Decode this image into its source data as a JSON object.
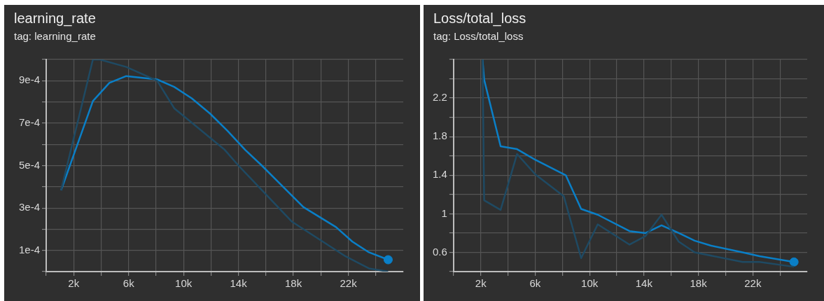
{
  "chart_data": [
    {
      "type": "line",
      "title": "learning_rate",
      "subtitle": "tag: learning_rate",
      "grid": true,
      "legend": false,
      "xlim": [
        0,
        26000
      ],
      "xticks": [
        {
          "value": 0,
          "label": null
        },
        {
          "value": 2000,
          "label": "2k"
        },
        {
          "value": 4000,
          "label": null
        },
        {
          "value": 6000,
          "label": "6k"
        },
        {
          "value": 8000,
          "label": null
        },
        {
          "value": 10000,
          "label": "10k"
        },
        {
          "value": 12000,
          "label": null
        },
        {
          "value": 14000,
          "label": "14k"
        },
        {
          "value": 16000,
          "label": null
        },
        {
          "value": 18000,
          "label": "18k"
        },
        {
          "value": 20000,
          "label": null
        },
        {
          "value": 22000,
          "label": "22k"
        },
        {
          "value": 24000,
          "label": null
        }
      ],
      "ylim": [
        0,
        0.001
      ],
      "yticks": [
        {
          "value": 0,
          "label": null
        },
        {
          "value": 0.0001,
          "label": "1e-4"
        },
        {
          "value": 0.0002,
          "label": null
        },
        {
          "value": 0.0003,
          "label": "3e-4"
        },
        {
          "value": 0.0004,
          "label": null
        },
        {
          "value": 0.0005,
          "label": "5e-4"
        },
        {
          "value": 0.0006,
          "label": null
        },
        {
          "value": 0.0007,
          "label": "7e-4"
        },
        {
          "value": 0.0008,
          "label": null
        },
        {
          "value": 0.0009,
          "label": "9e-4"
        },
        {
          "value": 0.001,
          "label": null
        }
      ],
      "series": [
        {
          "color": "#1f4a63",
          "x": [
            1080,
            3400,
            3900,
            5830,
            8080,
            9320,
            13000,
            14000,
            17900,
            21800,
            23500,
            24900
          ],
          "values": [
            0.000383,
            0.001,
            0.001,
            0.000965,
            0.0009,
            0.00077,
            0.000574,
            0.0005,
            0.000235,
            7.2e-05,
            1.5e-05,
            0
          ]
        },
        {
          "color": "#0a7fc7",
          "x": [
            1080,
            3400,
            4600,
            5830,
            8080,
            9320,
            10600,
            11930,
            13200,
            14490,
            15700,
            18730,
            21100,
            22300,
            23500,
            24900
          ],
          "values": [
            0.000383,
            0.000804,
            0.00089,
            0.000922,
            0.000906,
            0.000871,
            0.000817,
            0.000745,
            0.000664,
            0.000574,
            0.0005,
            0.000304,
            0.00021,
            0.000141,
            9.1e-05,
            5.6e-05
          ]
        },
        {
          "type": "scatter",
          "marker": "circle",
          "color": "#0a7fc7",
          "x": [
            24900
          ],
          "values": [
            5.6e-05
          ]
        }
      ]
    },
    {
      "type": "line",
      "title": "Loss/total_loss",
      "subtitle": "tag: Loss/total_loss",
      "grid": true,
      "legend": false,
      "xlim": [
        0,
        26000
      ],
      "xticks": [
        {
          "value": 0,
          "label": null
        },
        {
          "value": 2000,
          "label": "2k"
        },
        {
          "value": 4000,
          "label": null
        },
        {
          "value": 6000,
          "label": "6k"
        },
        {
          "value": 8000,
          "label": null
        },
        {
          "value": 10000,
          "label": "10k"
        },
        {
          "value": 12000,
          "label": null
        },
        {
          "value": 14000,
          "label": "14k"
        },
        {
          "value": 16000,
          "label": null
        },
        {
          "value": 18000,
          "label": "18k"
        },
        {
          "value": 20000,
          "label": null
        },
        {
          "value": 22000,
          "label": "22k"
        },
        {
          "value": 24000,
          "label": null
        }
      ],
      "ylim": [
        0.4,
        2.6
      ],
      "yticks": [
        {
          "value": 0.4,
          "label": null
        },
        0.6,
        {
          "value": 0.8,
          "label": null
        },
        1,
        {
          "value": 1.2,
          "label": null
        },
        1.4,
        {
          "value": 1.6,
          "label": null
        },
        1.8,
        {
          "value": 2,
          "label": null
        },
        2.2,
        {
          "value": 2.4,
          "label": null
        },
        {
          "value": 2.6,
          "label": null
        }
      ],
      "series": [
        {
          "color": "#1f4a63",
          "x": [
            2130,
            2250,
            3460,
            4670,
            6000,
            8110,
            9380,
            10600,
            12940,
            14120,
            15290,
            16560,
            17730,
            21250,
            22500,
            25030
          ],
          "values": [
            2.6,
            1.14,
            1.04,
            1.62,
            1.41,
            1.18,
            0.54,
            0.89,
            0.68,
            0.77,
            0.99,
            0.71,
            0.6,
            0.5,
            0.5,
            0.45
          ]
        },
        {
          "color": "#0a7fc7",
          "x": [
            2130,
            2250,
            3460,
            4670,
            6000,
            8250,
            9380,
            10600,
            12940,
            14120,
            15290,
            16560,
            17730,
            18900,
            21250,
            22500,
            25030
          ],
          "values": [
            2.6,
            2.39,
            1.7,
            1.67,
            1.56,
            1.4,
            1.05,
            0.99,
            0.82,
            0.8,
            0.88,
            0.8,
            0.72,
            0.67,
            0.6,
            0.56,
            0.5
          ]
        },
        {
          "type": "scatter",
          "marker": "circle",
          "color": "#0a7fc7",
          "x": [
            25030
          ],
          "values": [
            0.5
          ]
        }
      ]
    }
  ]
}
